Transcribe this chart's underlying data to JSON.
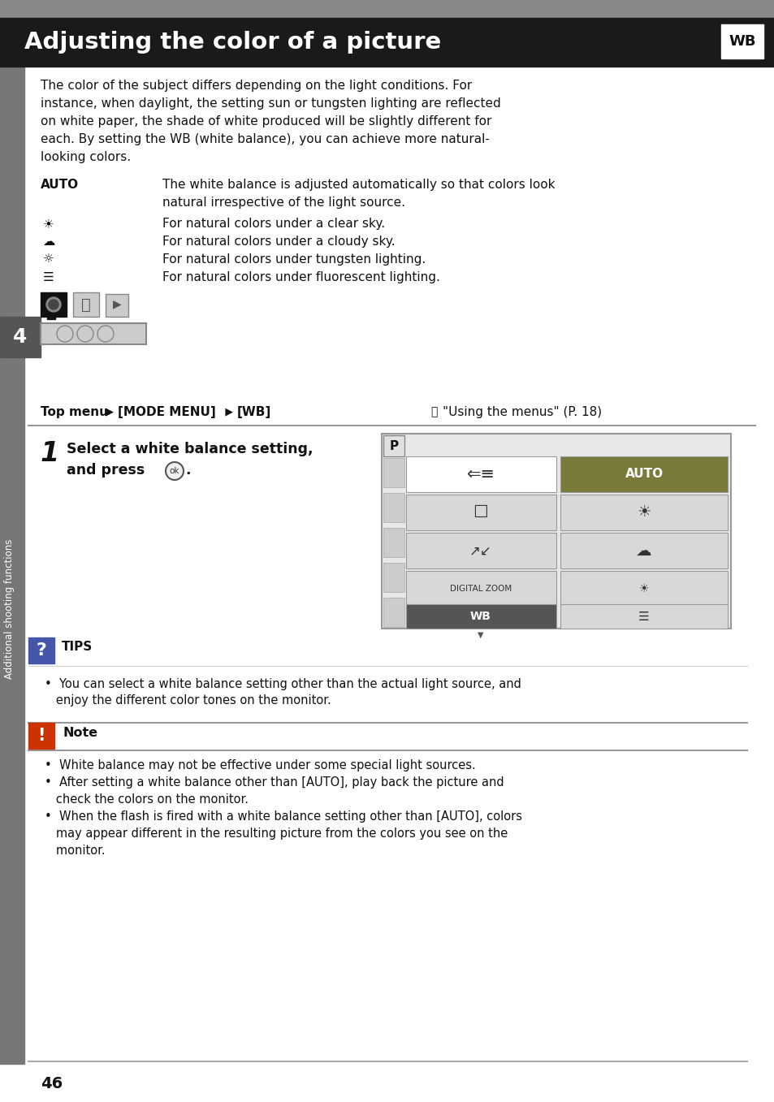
{
  "title": "Adjusting the color of a picture",
  "title_bg": "#1a1a1a",
  "title_text_color": "#ffffff",
  "wb_badge_bg": "#ffffff",
  "wb_badge_text": "WB",
  "page_bg": "#ffffff",
  "body_text_color": "#111111",
  "gray_top_bar_color": "#888888",
  "sidebar_bg": "#777777",
  "sidebar_num_bg": "#555555",
  "divider_color": "#999999",
  "intro_lines": [
    "The color of the subject differs depending on the light conditions. For",
    "instance, when daylight, the setting sun or tungsten lighting are reflected",
    "on white paper, the shade of white produced will be slightly different for",
    "each. By setting the WB (white balance), you can achieve more natural-",
    "looking colors."
  ],
  "auto_label": "AUTO",
  "auto_desc_line1": "The white balance is adjusted automatically so that colors look",
  "auto_desc_line2": "natural irrespective of the light source.",
  "icon_rows": [
    {
      "desc": "For natural colors under a clear sky."
    },
    {
      "desc": "For natural colors under a cloudy sky."
    },
    {
      "desc": "For natural colors under tungsten lighting."
    },
    {
      "desc": "For natural colors under fluorescent lighting."
    }
  ],
  "top_menu": "Top menu",
  "top_menu_arrow": " ▶ ",
  "top_menu_mode": "[MODE MENU]",
  "top_menu_arrow2": " ▶ ",
  "top_menu_wb": "[WB]",
  "ref_text": "\"Using the menus\" (P. 18)",
  "step_text_line1": "Select a white balance setting,",
  "step_text_line2": "and press",
  "tips_title": "TIPS",
  "tips_line1": "•  You can select a white balance setting other than the actual light source, and",
  "tips_line2": "   enjoy the different color tones on the monitor.",
  "note_title": "Note",
  "note_bullet1": "•  White balance may not be effective under some special light sources.",
  "note_bullet2": "•  After setting a white balance other than [AUTO], play back the picture and",
  "note_bullet2b": "   check the colors on the monitor.",
  "note_bullet3": "•  When the flash is fired with a white balance setting other than [AUTO], colors",
  "note_bullet3b": "   may appear different in the resulting picture from the colors you see on the",
  "note_bullet3c": "   monitor.",
  "page_number": "46",
  "sidebar_text": "Additional shooting functions",
  "ui_auto_bg": "#7a7a3a",
  "ui_cell_bg": "#d8d8d8",
  "ui_selected_bg": "#ffffff",
  "ui_wb_bar_bg": "#555555"
}
